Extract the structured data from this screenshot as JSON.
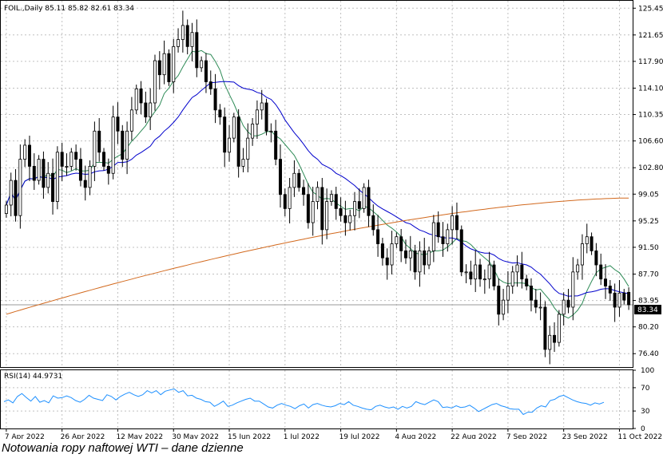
{
  "caption": "Notowania ropy naftowej WTI – dane dzienne",
  "colors": {
    "up": "#ffffff",
    "down": "#000000",
    "grid": "#c0c0c0",
    "sma_fast": "#2e8b57",
    "sma_mid": "#0000cc",
    "sma_slow": "#d2691e",
    "rsi": "#1e90ff",
    "price_tag": "#000000"
  },
  "chart_data": [
    {
      "type": "candlestick",
      "header": "FOIL.,Daily  85.11 85.82 82.61 83.34",
      "symbol": "FOIL.",
      "timeframe": "Daily",
      "last_ohlc": {
        "open": 85.11,
        "high": 85.82,
        "low": 82.61,
        "close": 83.34
      },
      "last_price_label": "83.34",
      "ylim": [
        74.5,
        126.5
      ],
      "yticks": [
        125.45,
        121.65,
        117.9,
        114.1,
        110.35,
        106.6,
        102.8,
        99.05,
        95.25,
        91.5,
        87.7,
        83.95,
        80.2,
        76.4
      ],
      "ytick_labels": [
        "125.45",
        "121.65",
        "117.90",
        "114.10",
        "110.35",
        "106.60",
        "102.80",
        "99.05",
        "95.25",
        "91.50",
        "87.70",
        "83.95",
        "80.20",
        "76.40"
      ],
      "xtick_labels": [
        "7 Apr 2022",
        "26 Apr 2022",
        "12 May 2022",
        "30 May 2022",
        "15 Jun 2022",
        "1 Jul 2022",
        "19 Jul 2022",
        "4 Aug 2022",
        "22 Aug 2022",
        "7 Sep 2022",
        "23 Sep 2022",
        "11 Oct 2022"
      ],
      "xtick_index": [
        0,
        12,
        24,
        36,
        48,
        60,
        72,
        84,
        96,
        108,
        120,
        132
      ],
      "grid": true,
      "close": [
        97.5,
        101,
        96,
        104,
        106,
        103,
        101,
        104,
        100,
        102,
        98,
        105,
        103,
        103,
        105,
        104,
        101,
        100,
        103,
        108,
        105,
        103,
        102,
        110,
        108,
        104,
        108,
        111,
        114,
        112,
        110,
        112,
        118,
        116,
        119,
        115,
        120,
        121,
        123,
        120,
        122,
        117,
        118,
        115,
        114,
        111,
        110,
        105,
        107,
        110,
        103,
        104,
        107,
        109,
        111,
        112,
        108,
        108,
        104,
        99,
        97,
        100,
        102,
        100,
        99,
        95,
        98,
        100,
        94,
        98,
        99,
        97,
        96,
        95,
        96,
        98,
        97,
        100,
        96,
        94,
        92,
        90,
        89,
        92,
        93,
        91,
        90,
        91,
        88,
        91,
        89,
        91,
        95,
        93,
        92,
        94,
        96,
        94,
        88,
        88,
        87,
        89,
        87,
        87,
        89,
        86,
        82,
        84,
        86,
        88,
        89,
        87,
        86,
        84,
        83,
        83,
        77,
        79,
        78,
        82,
        84,
        83,
        88,
        89,
        92,
        93,
        91,
        89,
        87,
        86,
        85,
        83,
        85,
        84,
        83.34
      ],
      "sma_fast": [],
      "sma_mid": [],
      "sma_slow": []
    },
    {
      "type": "line",
      "label": "RSI(14) 44.9731",
      "ylim": [
        0,
        100
      ],
      "yticks": [
        100,
        70,
        30,
        0
      ],
      "ytick_labels": [
        "100",
        "70",
        "30",
        "0"
      ],
      "values": [
        46,
        49,
        44,
        55,
        60,
        53,
        47,
        55,
        45,
        48,
        44,
        56,
        52,
        53,
        56,
        53,
        48,
        45,
        50,
        57,
        52,
        50,
        48,
        58,
        55,
        49,
        55,
        59,
        62,
        58,
        55,
        58,
        65,
        61,
        65,
        58,
        64,
        66,
        68,
        62,
        65,
        56,
        57,
        52,
        50,
        46,
        45,
        38,
        42,
        47,
        38,
        40,
        44,
        47,
        50,
        52,
        47,
        47,
        42,
        37,
        35,
        40,
        43,
        40,
        38,
        34,
        39,
        42,
        35,
        41,
        43,
        40,
        38,
        37,
        39,
        43,
        41,
        46,
        40,
        38,
        35,
        33,
        32,
        38,
        40,
        37,
        35,
        37,
        33,
        38,
        35,
        38,
        46,
        43,
        41,
        45,
        49,
        46,
        36,
        37,
        35,
        39,
        36,
        37,
        40,
        35,
        29,
        33,
        37,
        41,
        43,
        39,
        37,
        34,
        33,
        33,
        24,
        28,
        28,
        35,
        39,
        37,
        48,
        50,
        55,
        57,
        53,
        49,
        46,
        44,
        43,
        40,
        44,
        42,
        44.97
      ]
    }
  ]
}
